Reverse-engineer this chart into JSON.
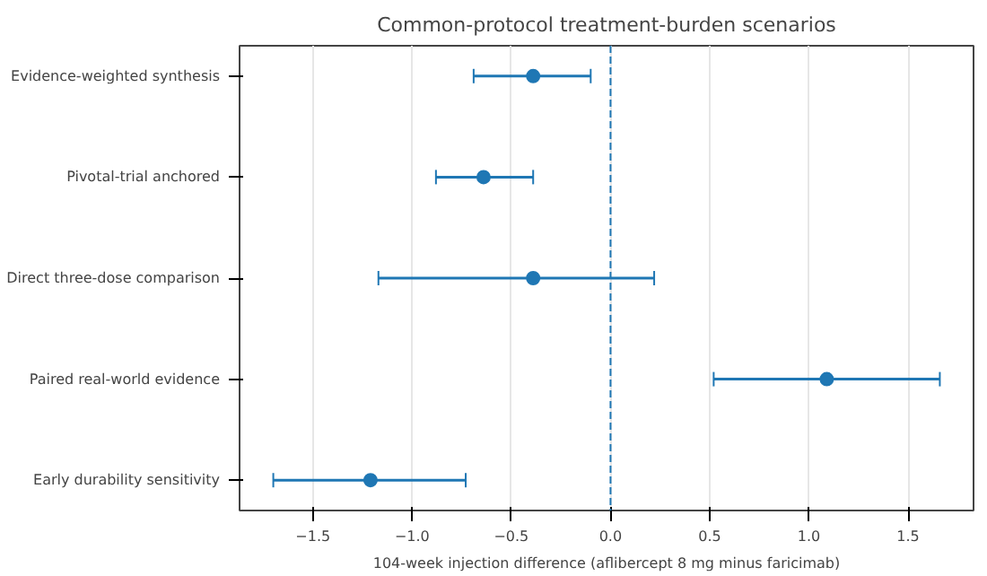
{
  "chart_data": {
    "type": "scatter",
    "orientation": "horizontal",
    "title": "Common-protocol treatment-burden scenarios",
    "xlabel": "104-week injection difference (aflibercept 8 mg minus faricimab)",
    "categories": [
      "Evidence-weighted synthesis",
      "Pivotal-trial anchored",
      "Direct three-dose comparison",
      "Paired real-world evidence",
      "Early durability sensitivity"
    ],
    "values": [
      -0.39,
      -0.64,
      -0.39,
      1.09,
      -1.21
    ],
    "errors": [
      [
        -0.69,
        -0.1
      ],
      [
        -0.88,
        -0.39
      ],
      [
        -1.17,
        0.22
      ],
      [
        0.52,
        1.66
      ],
      [
        -1.7,
        -0.73
      ]
    ],
    "color": "#1f77b4",
    "xlim": [
      -1.87,
      1.83
    ],
    "xticks": [
      {
        "value": -1.5,
        "label": "−1.5"
      },
      {
        "value": -1.0,
        "label": "−1.0"
      },
      {
        "value": -0.5,
        "label": "−0.5"
      },
      {
        "value": 0.0,
        "label": "0.0"
      },
      {
        "value": 0.5,
        "label": "0.5"
      },
      {
        "value": 1.0,
        "label": "1.0"
      },
      {
        "value": 1.5,
        "label": "1.5"
      }
    ],
    "ref_lines": [
      {
        "axis": "x",
        "value": 0,
        "label": null,
        "color": "#1f77b4",
        "line_style": "dashed"
      }
    ],
    "grid": "x",
    "marker": "circle"
  }
}
